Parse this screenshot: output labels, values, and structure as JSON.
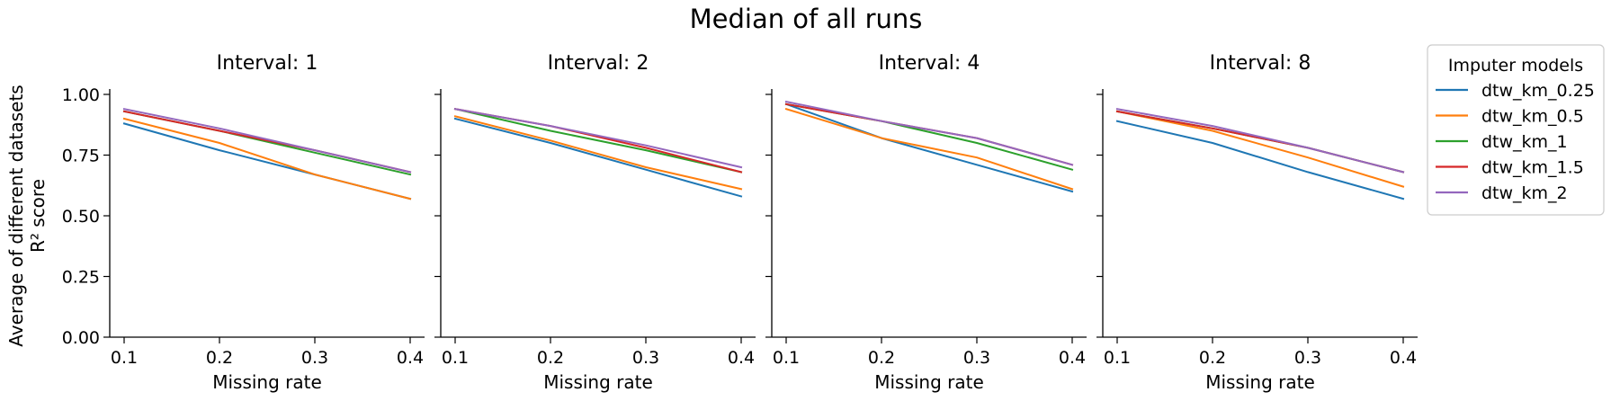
{
  "figure": {
    "title": "Median of all runs",
    "ylabel_line1": "Average of different datasets",
    "ylabel_line2": "R² score"
  },
  "legend": {
    "title": "Imputer models",
    "placement": "outside right, top"
  },
  "chart_data": [
    {
      "type": "line",
      "title": "Interval: 1",
      "xlabel": "Missing rate",
      "ylabel": "R² score",
      "x": [
        0.1,
        0.2,
        0.3,
        0.4
      ],
      "xticks": [
        "0.1",
        "0.2",
        "0.3",
        "0.4"
      ],
      "yticks": [
        "0.00",
        "0.25",
        "0.50",
        "0.75",
        "1.00"
      ],
      "ylim": [
        0,
        1
      ],
      "series": [
        {
          "name": "dtw_km_0.25",
          "color": "#1f77b4",
          "values": [
            0.88,
            0.77,
            0.67,
            0.57
          ]
        },
        {
          "name": "dtw_km_0.5",
          "color": "#ff7f0e",
          "values": [
            0.9,
            0.8,
            0.67,
            0.57
          ]
        },
        {
          "name": "dtw_km_1",
          "color": "#2ca02c",
          "values": [
            0.93,
            0.85,
            0.76,
            0.67
          ]
        },
        {
          "name": "dtw_km_1.5",
          "color": "#d62728",
          "values": [
            0.93,
            0.85,
            0.77,
            0.68
          ]
        },
        {
          "name": "dtw_km_2",
          "color": "#9467bd",
          "values": [
            0.94,
            0.86,
            0.77,
            0.68
          ]
        }
      ]
    },
    {
      "type": "line",
      "title": "Interval: 2",
      "xlabel": "Missing rate",
      "x": [
        0.1,
        0.2,
        0.3,
        0.4
      ],
      "xticks": [
        "0.1",
        "0.2",
        "0.3",
        "0.4"
      ],
      "ylim": [
        0,
        1
      ],
      "series": [
        {
          "name": "dtw_km_0.25",
          "color": "#1f77b4",
          "values": [
            0.9,
            0.8,
            0.69,
            0.58
          ]
        },
        {
          "name": "dtw_km_0.5",
          "color": "#ff7f0e",
          "values": [
            0.91,
            0.81,
            0.7,
            0.61
          ]
        },
        {
          "name": "dtw_km_1",
          "color": "#2ca02c",
          "values": [
            0.94,
            0.85,
            0.77,
            0.68
          ]
        },
        {
          "name": "dtw_km_1.5",
          "color": "#d62728",
          "values": [
            0.94,
            0.87,
            0.78,
            0.68
          ]
        },
        {
          "name": "dtw_km_2",
          "color": "#9467bd",
          "values": [
            0.94,
            0.87,
            0.79,
            0.7
          ]
        }
      ]
    },
    {
      "type": "line",
      "title": "Interval: 4",
      "xlabel": "Missing rate",
      "x": [
        0.1,
        0.2,
        0.3,
        0.4
      ],
      "xticks": [
        "0.1",
        "0.2",
        "0.3",
        "0.4"
      ],
      "ylim": [
        0,
        1
      ],
      "series": [
        {
          "name": "dtw_km_0.25",
          "color": "#1f77b4",
          "values": [
            0.96,
            0.82,
            0.71,
            0.6
          ]
        },
        {
          "name": "dtw_km_0.5",
          "color": "#ff7f0e",
          "values": [
            0.94,
            0.82,
            0.74,
            0.61
          ]
        },
        {
          "name": "dtw_km_1",
          "color": "#2ca02c",
          "values": [
            0.96,
            0.89,
            0.8,
            0.69
          ]
        },
        {
          "name": "dtw_km_1.5",
          "color": "#d62728",
          "values": [
            0.96,
            0.89,
            0.82,
            0.71
          ]
        },
        {
          "name": "dtw_km_2",
          "color": "#9467bd",
          "values": [
            0.97,
            0.89,
            0.82,
            0.71
          ]
        }
      ]
    },
    {
      "type": "line",
      "title": "Interval: 8",
      "xlabel": "Missing rate",
      "x": [
        0.1,
        0.2,
        0.3,
        0.4
      ],
      "xticks": [
        "0.1",
        "0.2",
        "0.3",
        "0.4"
      ],
      "ylim": [
        0,
        1
      ],
      "series": [
        {
          "name": "dtw_km_0.25",
          "color": "#1f77b4",
          "values": [
            0.89,
            0.8,
            0.68,
            0.57
          ]
        },
        {
          "name": "dtw_km_0.5",
          "color": "#ff7f0e",
          "values": [
            0.93,
            0.85,
            0.74,
            0.62
          ]
        },
        {
          "name": "dtw_km_1",
          "color": "#2ca02c",
          "values": [
            0.93,
            0.86,
            0.78,
            0.68
          ]
        },
        {
          "name": "dtw_km_1.5",
          "color": "#d62728",
          "values": [
            0.93,
            0.86,
            0.78,
            0.68
          ]
        },
        {
          "name": "dtw_km_2",
          "color": "#9467bd",
          "values": [
            0.94,
            0.87,
            0.78,
            0.68
          ]
        }
      ]
    }
  ]
}
